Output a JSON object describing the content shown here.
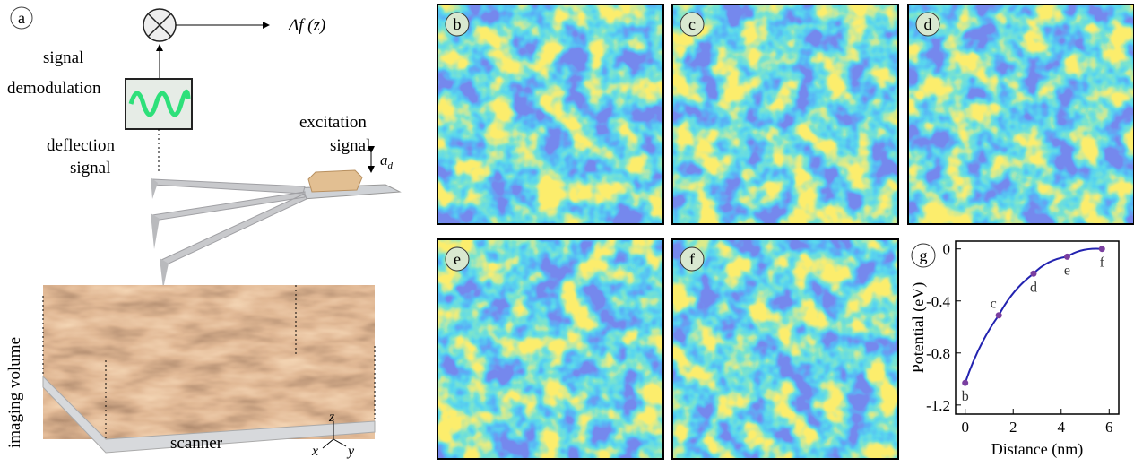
{
  "panel_labels": [
    "a",
    "b",
    "c",
    "d",
    "e",
    "f",
    "g"
  ],
  "diagram": {
    "output": "Δf (z)",
    "demodulation": [
      "signal",
      "demodulation"
    ],
    "deflection": [
      "deflection",
      "signal"
    ],
    "excitation": [
      "excitation",
      "signal"
    ],
    "amplitude": "a",
    "amplitude_sub": "d",
    "volume": "imaging volume",
    "scanner": "scanner",
    "axes": [
      "x",
      "y",
      "z"
    ]
  },
  "chart_data": {
    "type": "line",
    "xlabel": "Distance (nm)",
    "ylabel": "Potential (eV)",
    "x": [
      0,
      1.4,
      2.85,
      4.25,
      5.7
    ],
    "values": [
      -1.03,
      -0.51,
      -0.19,
      -0.06,
      0
    ],
    "point_labels": [
      "b",
      "c",
      "d",
      "e",
      "f"
    ],
    "color": "#2323b0",
    "marker_color": "#7a3fa0",
    "xlim": [
      -0.4,
      6.4
    ],
    "xticks": [
      0,
      2,
      4,
      6
    ],
    "ylim": [
      -1.27,
      0.06
    ],
    "yticks": [
      0,
      -0.4,
      -0.8,
      -1.2
    ]
  }
}
